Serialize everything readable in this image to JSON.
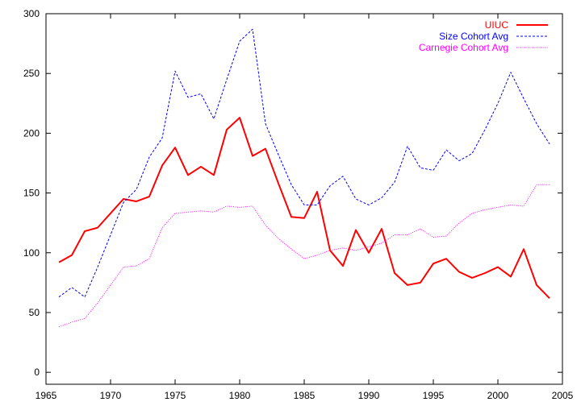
{
  "chart_data": {
    "type": "line",
    "title": "",
    "xlabel": "",
    "ylabel": "",
    "xlim": [
      1965,
      2005
    ],
    "ylim": [
      -10,
      300
    ],
    "x_ticks": [
      1965,
      1970,
      1975,
      1980,
      1985,
      1990,
      1995,
      2000,
      2005
    ],
    "y_ticks": [
      0,
      50,
      100,
      150,
      200,
      250,
      300
    ],
    "grid": false,
    "legend_position": "top-right",
    "series": [
      {
        "name": "UIUC",
        "color": "#ff0000",
        "style": "solid",
        "x": [
          1966,
          1967,
          1968,
          1969,
          1970,
          1971,
          1972,
          1973,
          1974,
          1975,
          1976,
          1977,
          1978,
          1979,
          1980,
          1981,
          1982,
          1983,
          1984,
          1985,
          1986,
          1987,
          1988,
          1989,
          1990,
          1991,
          1992,
          1993,
          1994,
          1995,
          1996,
          1997,
          1998,
          1999,
          2000,
          2001,
          2002,
          2003,
          2004
        ],
        "values": [
          92,
          98,
          118,
          121,
          133,
          145,
          143,
          147,
          173,
          188,
          165,
          172,
          165,
          203,
          213,
          181,
          187,
          158,
          130,
          129,
          151,
          102,
          89,
          119,
          100,
          120,
          83,
          73,
          75,
          91,
          95,
          84,
          79,
          83,
          88,
          80,
          103,
          73,
          62
        ]
      },
      {
        "name": "Size Cohort Avg",
        "color": "#0000ff",
        "style": "dashed",
        "x": [
          1966,
          1967,
          1968,
          1969,
          1970,
          1971,
          1972,
          1973,
          1974,
          1975,
          1976,
          1977,
          1978,
          1979,
          1980,
          1981,
          1982,
          1983,
          1984,
          1985,
          1986,
          1987,
          1988,
          1989,
          1990,
          1991,
          1992,
          1993,
          1994,
          1995,
          1996,
          1997,
          1998,
          1999,
          2000,
          2001,
          2002,
          2003,
          2004
        ],
        "values": [
          63,
          71,
          63,
          88,
          115,
          142,
          153,
          180,
          196,
          252,
          230,
          233,
          212,
          245,
          277,
          287,
          208,
          182,
          157,
          140,
          140,
          156,
          164,
          145,
          140,
          146,
          159,
          189,
          171,
          169,
          186,
          177,
          183,
          203,
          225,
          251,
          229,
          208,
          191
        ]
      },
      {
        "name": "Carnegie Cohort Avg",
        "color": "#ff00ff",
        "style": "dotted",
        "x": [
          1966,
          1967,
          1968,
          1969,
          1970,
          1971,
          1972,
          1973,
          1974,
          1975,
          1976,
          1977,
          1978,
          1979,
          1980,
          1981,
          1982,
          1983,
          1984,
          1985,
          1986,
          1987,
          1988,
          1989,
          1990,
          1991,
          1992,
          1993,
          1994,
          1995,
          1996,
          1997,
          1998,
          1999,
          2000,
          2001,
          2002,
          2003,
          2004
        ],
        "values": [
          38,
          42,
          45,
          58,
          73,
          88,
          89,
          95,
          121,
          133,
          134,
          135,
          134,
          139,
          138,
          139,
          123,
          112,
          103,
          95,
          98,
          102,
          104,
          102,
          105,
          108,
          115,
          115,
          120,
          113,
          114,
          125,
          133,
          136,
          138,
          140,
          139,
          157,
          157
        ]
      }
    ]
  }
}
